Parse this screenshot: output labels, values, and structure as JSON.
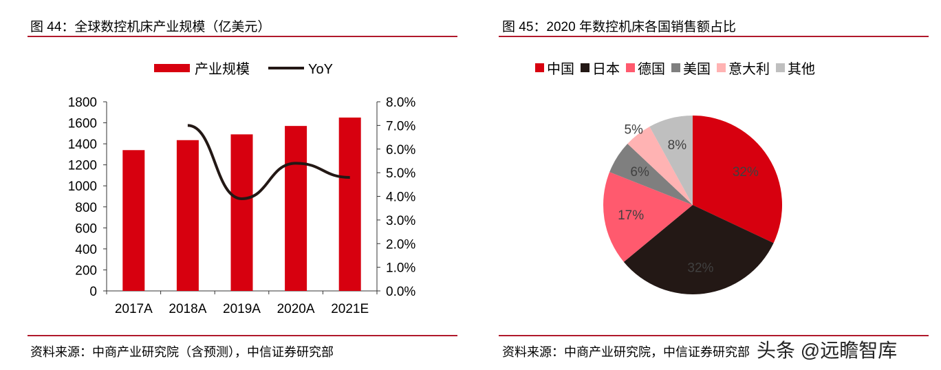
{
  "left": {
    "title": "图 44：全球数控机床产业规模（亿美元）",
    "source": "资料来源：中商产业研究院（含预测），中信证券研究部"
  },
  "right": {
    "title": "图 45：2020 年数控机床各国销售额占比",
    "source": "资料来源：中商产业研究院，中信证券研究部"
  },
  "watermark": "头条 @远瞻智库",
  "chart_data": [
    {
      "type": "bar+line",
      "categories": [
        "2017A",
        "2018A",
        "2019A",
        "2020A",
        "2021E"
      ],
      "series": [
        {
          "name": "产业规模",
          "type": "bar",
          "axis": "left",
          "color": "#d7000f",
          "values": [
            1340,
            1435,
            1490,
            1570,
            1650
          ]
        },
        {
          "name": "YoY",
          "type": "line",
          "axis": "right",
          "color": "#231815",
          "values": [
            null,
            7.0,
            3.9,
            5.4,
            4.8
          ]
        }
      ],
      "ylim_left": [
        0,
        1800
      ],
      "yticks_left": [
        "0",
        "200",
        "400",
        "600",
        "800",
        "1000",
        "1200",
        "1400",
        "1600",
        "1800"
      ],
      "ylim_right": [
        0,
        8
      ],
      "yticks_right": [
        "0.0%",
        "1.0%",
        "2.0%",
        "3.0%",
        "4.0%",
        "5.0%",
        "6.0%",
        "7.0%",
        "8.0%"
      ],
      "legend": "top"
    },
    {
      "type": "pie",
      "legend": "top",
      "slices": [
        {
          "name": "中国",
          "value": 32,
          "label": "32%",
          "color": "#d7000f"
        },
        {
          "name": "日本",
          "value": 32,
          "label": "32%",
          "color": "#231815"
        },
        {
          "name": "德国",
          "value": 17,
          "label": "17%",
          "color": "#ff5a6e"
        },
        {
          "name": "美国",
          "value": 6,
          "label": "6%",
          "color": "#7f7f7f"
        },
        {
          "name": "意大利",
          "value": 5,
          "label": "5%",
          "color": "#ffb3b3"
        },
        {
          "name": "其他",
          "value": 8,
          "label": "8%",
          "color": "#bfbfbf"
        }
      ]
    }
  ]
}
